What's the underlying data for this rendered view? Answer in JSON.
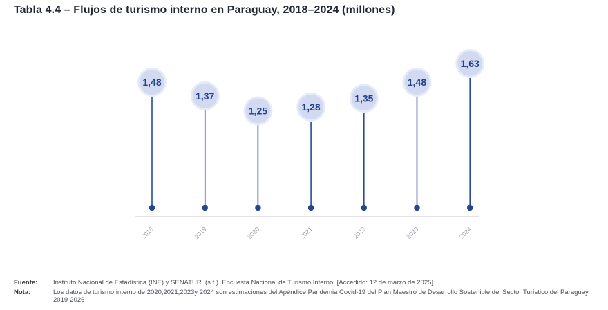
{
  "title": "Tabla 4.4 – Flujos de turismo interno en Paraguay, 2018–2024 (millones)",
  "chart_data": {
    "type": "lollipop",
    "categories": [
      "2018",
      "2019",
      "2020",
      "2021",
      "2022",
      "2023",
      "2024"
    ],
    "values": [
      1.48,
      1.37,
      1.25,
      1.28,
      1.35,
      1.48,
      1.63
    ],
    "value_labels": [
      "1,48",
      "1,37",
      "1,25",
      "1,28",
      "1,35",
      "1,48",
      "1,63"
    ],
    "title": "Tabla 4.4 – Flujos de turismo interno en Paraguay, 2018–2024 (millones)",
    "xlabel": "",
    "ylabel": "",
    "grid": false,
    "colors": {
      "stem": "#2a4a9a",
      "dot": "#24468f",
      "bubble": "#d2daf1",
      "bubble_ring": "#e6ebf8",
      "label": "#23408a",
      "axis": "#d9dce3",
      "tick": "#9aa0aa"
    }
  },
  "footer": {
    "source_label": "Fuente:",
    "source_text": "Instituto Nacional de Estadística (INE) y SENATUR. (s.f.). Encuesta Nacional de Turismo Interno. [Accedido: 12 de marzo de 2025].",
    "note_label": "Nota:",
    "note_text": "Los datos de turismo interno de 2020,2021,2023y 2024 son estimaciones del Apéndice Pandemia Covid-19 del Plan Maestro de Desarrollo Sostenible del Sector Turístico del Paraguay 2019-2026"
  }
}
